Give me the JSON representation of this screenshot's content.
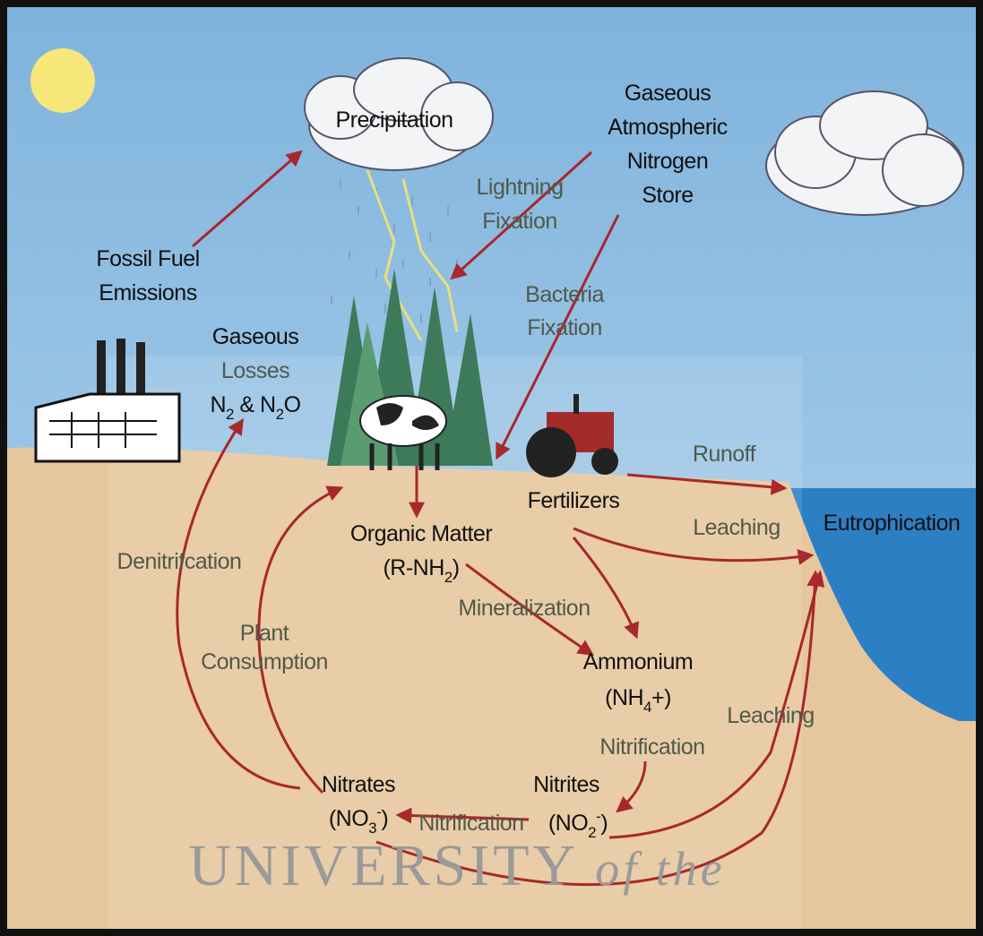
{
  "labels": [
    {
      "lines": [
        "Precipitation"
      ]
    },
    {
      "lines": [
        "Gaseous",
        "Atmospheric",
        "Nitrogen",
        "Store"
      ]
    },
    {
      "lines": [
        "Lightning",
        "Fixation"
      ]
    },
    {
      "lines": [
        "Fossil Fuel",
        "Emissions"
      ]
    },
    {
      "lines": [
        "Bacteria",
        "Fixation"
      ]
    },
    {
      "lines": [
        "Gaseous",
        "Losses",
        [
          {
            "t": "N"
          },
          {
            "sub": "2"
          },
          {
            "t": " & N"
          },
          {
            "sub": "2"
          },
          {
            "t": "O"
          }
        ]
      ]
    },
    {
      "lines": [
        "Runoff"
      ]
    },
    {
      "lines": [
        "Fertilizers"
      ]
    },
    {
      "lines": [
        "Eutrophication"
      ]
    },
    {
      "lines": [
        "Leaching"
      ]
    },
    {
      "lines": [
        "Organic Matter",
        [
          {
            "t": "(R-NH"
          },
          {
            "sub": "2"
          },
          {
            "t": ")"
          }
        ]
      ]
    },
    {
      "lines": [
        "Denitrifcation"
      ]
    },
    {
      "lines": [
        "Mineralization"
      ]
    },
    {
      "lines": [
        "Plant",
        "Consumption"
      ]
    },
    {
      "lines": [
        "Ammonium",
        [
          {
            "t": "(NH"
          },
          {
            "sub": "4"
          },
          {
            "t": "+)"
          }
        ]
      ]
    },
    {
      "lines": [
        "Leaching"
      ]
    },
    {
      "lines": [
        "Nitrification"
      ]
    },
    {
      "lines": [
        "Nitrates",
        [
          {
            "t": "(NO"
          },
          {
            "sub": "3"
          },
          {
            "sup": "-"
          },
          {
            "t": ")"
          }
        ]
      ]
    },
    {
      "lines": [
        "Nitrites"
      ]
    },
    {
      "lines": [
        "Nitrification"
      ]
    },
    {
      "lines": [
        [
          {
            "t": "(NO"
          },
          {
            "sub": "2"
          },
          {
            "sup": "-"
          },
          {
            "t": ")"
          }
        ]
      ]
    },
    {
      "lines": [
        [
          {
            "t": "UNIVERSITY "
          },
          {
            "i": "of the"
          }
        ]
      ]
    }
  ]
}
